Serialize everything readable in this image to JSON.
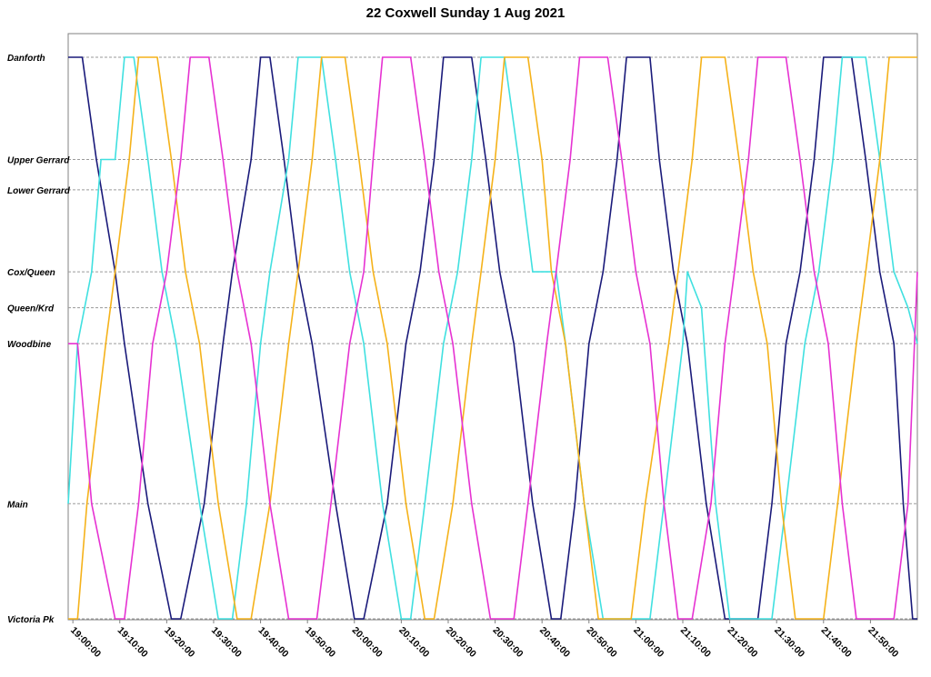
{
  "title": "22 Coxwell Sunday 1 Aug 2021",
  "chart_data": {
    "type": "line",
    "title": "22 Coxwell Sunday 1 Aug 2021",
    "xlabel": "",
    "ylabel": "",
    "x_unit": "time of day (HH:MM)",
    "xlim": [
      "18:59",
      "22:00"
    ],
    "x_ticks": [
      "19:00:00",
      "19:10:00",
      "19:20:00",
      "19:30:00",
      "19:40:00",
      "19:50:00",
      "20:00:00",
      "20:10:00",
      "20:20:00",
      "20:30:00",
      "20:40:00",
      "20:50:00",
      "21:00:00",
      "21:10:00",
      "21:20:00",
      "21:30:00",
      "21:40:00",
      "21:50:00"
    ],
    "y_stops": [
      {
        "name": "Danforth",
        "pos": 0.0
      },
      {
        "name": "Upper Gerrard",
        "pos": 0.182
      },
      {
        "name": "Lower Gerrard",
        "pos": 0.236
      },
      {
        "name": "Cox/Queen",
        "pos": 0.382
      },
      {
        "name": "Queen/Krd",
        "pos": 0.446
      },
      {
        "name": "Woodbine",
        "pos": 0.51
      },
      {
        "name": "Main",
        "pos": 0.795
      },
      {
        "name": "Victoria Pk",
        "pos": 1.0
      }
    ],
    "grid": "dashed horizontal lines at each stop",
    "legend": "none",
    "series": [
      {
        "color": "#1a1a7a",
        "points": [
          [
            "18:59",
            "Danforth"
          ],
          [
            "19:02",
            "Danforth"
          ],
          [
            "19:05",
            "Upper Gerrard"
          ],
          [
            "19:09",
            "Cox/Queen"
          ],
          [
            "19:11",
            "Woodbine"
          ],
          [
            "19:16",
            "Main"
          ],
          [
            "19:21",
            "Victoria Pk"
          ],
          [
            "19:23",
            "Victoria Pk"
          ],
          [
            "19:28",
            "Main"
          ],
          [
            "19:32",
            "Woodbine"
          ],
          [
            "19:34",
            "Cox/Queen"
          ],
          [
            "19:38",
            "Upper Gerrard"
          ],
          [
            "19:40",
            "Danforth"
          ],
          [
            "19:42",
            "Danforth"
          ],
          [
            "19:45",
            "Upper Gerrard"
          ],
          [
            "19:48",
            "Cox/Queen"
          ],
          [
            "19:51",
            "Woodbine"
          ],
          [
            "19:56",
            "Main"
          ],
          [
            "20:00",
            "Victoria Pk"
          ],
          [
            "20:02",
            "Victoria Pk"
          ],
          [
            "20:07",
            "Main"
          ],
          [
            "20:11",
            "Woodbine"
          ],
          [
            "20:14",
            "Cox/Queen"
          ],
          [
            "20:17",
            "Upper Gerrard"
          ],
          [
            "20:19",
            "Danforth"
          ],
          [
            "20:25",
            "Danforth"
          ],
          [
            "20:28",
            "Upper Gerrard"
          ],
          [
            "20:31",
            "Cox/Queen"
          ],
          [
            "20:34",
            "Woodbine"
          ],
          [
            "20:38",
            "Main"
          ],
          [
            "20:42",
            "Victoria Pk"
          ],
          [
            "20:44",
            "Victoria Pk"
          ],
          [
            "20:47",
            "Main"
          ],
          [
            "20:50",
            "Woodbine"
          ],
          [
            "20:53",
            "Cox/Queen"
          ],
          [
            "20:56",
            "Upper Gerrard"
          ],
          [
            "20:58",
            "Danforth"
          ],
          [
            "21:03",
            "Danforth"
          ],
          [
            "21:05",
            "Upper Gerrard"
          ],
          [
            "21:08",
            "Cox/Queen"
          ],
          [
            "21:11",
            "Woodbine"
          ],
          [
            "21:15",
            "Main"
          ],
          [
            "21:19",
            "Victoria Pk"
          ],
          [
            "21:26",
            "Victoria Pk"
          ],
          [
            "21:29",
            "Main"
          ],
          [
            "21:32",
            "Woodbine"
          ],
          [
            "21:35",
            "Cox/Queen"
          ],
          [
            "21:38",
            "Upper Gerrard"
          ],
          [
            "21:40",
            "Danforth"
          ],
          [
            "21:46",
            "Danforth"
          ],
          [
            "21:49",
            "Upper Gerrard"
          ],
          [
            "21:52",
            "Cox/Queen"
          ],
          [
            "21:55",
            "Woodbine"
          ],
          [
            "21:57",
            "Main"
          ],
          [
            "21:59",
            "Victoria Pk"
          ],
          [
            "22:00",
            "Victoria Pk"
          ]
        ]
      },
      {
        "color": "#40e0e0",
        "points": [
          [
            "18:59",
            "Main"
          ],
          [
            "19:01",
            "Woodbine"
          ],
          [
            "19:04",
            "Cox/Queen"
          ],
          [
            "19:06",
            "Upper Gerrard"
          ],
          [
            "19:09",
            "Upper Gerrard"
          ],
          [
            "19:11",
            "Danforth"
          ],
          [
            "19:13",
            "Danforth"
          ],
          [
            "19:16",
            "Upper Gerrard"
          ],
          [
            "19:19",
            "Cox/Queen"
          ],
          [
            "19:22",
            "Woodbine"
          ],
          [
            "19:27",
            "Main"
          ],
          [
            "19:31",
            "Victoria Pk"
          ],
          [
            "19:34",
            "Victoria Pk"
          ],
          [
            "19:37",
            "Main"
          ],
          [
            "19:40",
            "Woodbine"
          ],
          [
            "19:42",
            "Cox/Queen"
          ],
          [
            "19:46",
            "Upper Gerrard"
          ],
          [
            "19:48",
            "Danforth"
          ],
          [
            "19:53",
            "Danforth"
          ],
          [
            "19:56",
            "Upper Gerrard"
          ],
          [
            "19:59",
            "Cox/Queen"
          ],
          [
            "20:02",
            "Woodbine"
          ],
          [
            "20:06",
            "Main"
          ],
          [
            "20:10",
            "Victoria Pk"
          ],
          [
            "20:12",
            "Victoria Pk"
          ],
          [
            "20:15",
            "Main"
          ],
          [
            "20:19",
            "Woodbine"
          ],
          [
            "20:22",
            "Cox/Queen"
          ],
          [
            "20:25",
            "Upper Gerrard"
          ],
          [
            "20:27",
            "Danforth"
          ],
          [
            "20:32",
            "Danforth"
          ],
          [
            "20:35",
            "Upper Gerrard"
          ],
          [
            "20:38",
            "Cox/Queen"
          ],
          [
            "20:43",
            "Cox/Queen"
          ],
          [
            "20:45",
            "Woodbine"
          ],
          [
            "20:49",
            "Main"
          ],
          [
            "20:53",
            "Victoria Pk"
          ],
          [
            "21:03",
            "Victoria Pk"
          ],
          [
            "21:06",
            "Main"
          ],
          [
            "21:10",
            "Woodbine"
          ],
          [
            "21:11",
            "Cox/Queen"
          ],
          [
            "21:14",
            "Queen/Krd"
          ],
          [
            "21:17",
            "Main"
          ],
          [
            "21:20",
            "Victoria Pk"
          ],
          [
            "21:29",
            "Victoria Pk"
          ],
          [
            "21:32",
            "Main"
          ],
          [
            "21:36",
            "Woodbine"
          ],
          [
            "21:39",
            "Cox/Queen"
          ],
          [
            "21:42",
            "Upper Gerrard"
          ],
          [
            "21:44",
            "Danforth"
          ],
          [
            "21:49",
            "Danforth"
          ],
          [
            "21:52",
            "Upper Gerrard"
          ],
          [
            "21:55",
            "Cox/Queen"
          ],
          [
            "21:58",
            "Queen/Krd"
          ],
          [
            "22:00",
            "Woodbine"
          ]
        ]
      },
      {
        "color": "#f5b21a",
        "points": [
          [
            "18:59",
            "Victoria Pk"
          ],
          [
            "19:01",
            "Victoria Pk"
          ],
          [
            "19:03",
            "Main"
          ],
          [
            "19:07",
            "Woodbine"
          ],
          [
            "19:09",
            "Cox/Queen"
          ],
          [
            "19:12",
            "Upper Gerrard"
          ],
          [
            "19:14",
            "Danforth"
          ],
          [
            "19:18",
            "Danforth"
          ],
          [
            "19:21",
            "Upper Gerrard"
          ],
          [
            "19:24",
            "Cox/Queen"
          ],
          [
            "19:27",
            "Woodbine"
          ],
          [
            "19:31",
            "Main"
          ],
          [
            "19:35",
            "Victoria Pk"
          ],
          [
            "19:38",
            "Victoria Pk"
          ],
          [
            "19:42",
            "Main"
          ],
          [
            "19:46",
            "Woodbine"
          ],
          [
            "19:48",
            "Cox/Queen"
          ],
          [
            "19:51",
            "Upper Gerrard"
          ],
          [
            "19:53",
            "Danforth"
          ],
          [
            "19:58",
            "Danforth"
          ],
          [
            "20:01",
            "Upper Gerrard"
          ],
          [
            "20:04",
            "Cox/Queen"
          ],
          [
            "20:07",
            "Woodbine"
          ],
          [
            "20:11",
            "Main"
          ],
          [
            "20:15",
            "Victoria Pk"
          ],
          [
            "20:17",
            "Victoria Pk"
          ],
          [
            "20:21",
            "Main"
          ],
          [
            "20:25",
            "Woodbine"
          ],
          [
            "20:27",
            "Cox/Queen"
          ],
          [
            "20:30",
            "Upper Gerrard"
          ],
          [
            "20:32",
            "Danforth"
          ],
          [
            "20:37",
            "Danforth"
          ],
          [
            "20:40",
            "Upper Gerrard"
          ],
          [
            "20:42",
            "Cox/Queen"
          ],
          [
            "20:45",
            "Woodbine"
          ],
          [
            "20:49",
            "Main"
          ],
          [
            "20:52",
            "Victoria Pk"
          ],
          [
            "20:59",
            "Victoria Pk"
          ],
          [
            "21:02",
            "Main"
          ],
          [
            "21:07",
            "Woodbine"
          ],
          [
            "21:09",
            "Cox/Queen"
          ],
          [
            "21:12",
            "Upper Gerrard"
          ],
          [
            "21:14",
            "Danforth"
          ],
          [
            "21:19",
            "Danforth"
          ],
          [
            "21:22",
            "Upper Gerrard"
          ],
          [
            "21:25",
            "Cox/Queen"
          ],
          [
            "21:28",
            "Woodbine"
          ],
          [
            "21:31",
            "Main"
          ],
          [
            "21:34",
            "Victoria Pk"
          ],
          [
            "21:40",
            "Victoria Pk"
          ],
          [
            "21:43",
            "Main"
          ],
          [
            "21:47",
            "Woodbine"
          ],
          [
            "21:49",
            "Cox/Queen"
          ],
          [
            "21:52",
            "Upper Gerrard"
          ],
          [
            "21:54",
            "Danforth"
          ],
          [
            "22:00",
            "Danforth"
          ]
        ]
      },
      {
        "color": "#e632d2",
        "points": [
          [
            "18:59",
            "Woodbine"
          ],
          [
            "19:01",
            "Woodbine"
          ],
          [
            "19:04",
            "Main"
          ],
          [
            "19:09",
            "Victoria Pk"
          ],
          [
            "19:11",
            "Victoria Pk"
          ],
          [
            "19:14",
            "Main"
          ],
          [
            "19:17",
            "Woodbine"
          ],
          [
            "19:20",
            "Cox/Queen"
          ],
          [
            "19:23",
            "Upper Gerrard"
          ],
          [
            "19:25",
            "Danforth"
          ],
          [
            "19:29",
            "Danforth"
          ],
          [
            "19:32",
            "Upper Gerrard"
          ],
          [
            "19:35",
            "Cox/Queen"
          ],
          [
            "19:38",
            "Woodbine"
          ],
          [
            "19:42",
            "Main"
          ],
          [
            "19:46",
            "Victoria Pk"
          ],
          [
            "19:52",
            "Victoria Pk"
          ],
          [
            "19:55",
            "Main"
          ],
          [
            "19:59",
            "Woodbine"
          ],
          [
            "20:02",
            "Cox/Queen"
          ],
          [
            "20:04",
            "Upper Gerrard"
          ],
          [
            "20:06",
            "Danforth"
          ],
          [
            "20:12",
            "Danforth"
          ],
          [
            "20:15",
            "Upper Gerrard"
          ],
          [
            "20:18",
            "Cox/Queen"
          ],
          [
            "20:21",
            "Woodbine"
          ],
          [
            "20:25",
            "Main"
          ],
          [
            "20:29",
            "Victoria Pk"
          ],
          [
            "20:34",
            "Victoria Pk"
          ],
          [
            "20:37",
            "Main"
          ],
          [
            "20:41",
            "Woodbine"
          ],
          [
            "20:43",
            "Cox/Queen"
          ],
          [
            "20:46",
            "Upper Gerrard"
          ],
          [
            "20:48",
            "Danforth"
          ],
          [
            "20:54",
            "Danforth"
          ],
          [
            "20:57",
            "Upper Gerrard"
          ],
          [
            "21:00",
            "Cox/Queen"
          ],
          [
            "21:03",
            "Woodbine"
          ],
          [
            "21:06",
            "Main"
          ],
          [
            "21:09",
            "Victoria Pk"
          ],
          [
            "21:12",
            "Victoria Pk"
          ],
          [
            "21:16",
            "Main"
          ],
          [
            "21:19",
            "Woodbine"
          ],
          [
            "21:21",
            "Cox/Queen"
          ],
          [
            "21:24",
            "Upper Gerrard"
          ],
          [
            "21:26",
            "Danforth"
          ],
          [
            "21:32",
            "Danforth"
          ],
          [
            "21:35",
            "Upper Gerrard"
          ],
          [
            "21:38",
            "Cox/Queen"
          ],
          [
            "21:41",
            "Woodbine"
          ],
          [
            "21:44",
            "Main"
          ],
          [
            "21:47",
            "Victoria Pk"
          ],
          [
            "21:55",
            "Victoria Pk"
          ],
          [
            "21:58",
            "Main"
          ],
          [
            "22:00",
            "Cox/Queen"
          ]
        ]
      }
    ]
  }
}
